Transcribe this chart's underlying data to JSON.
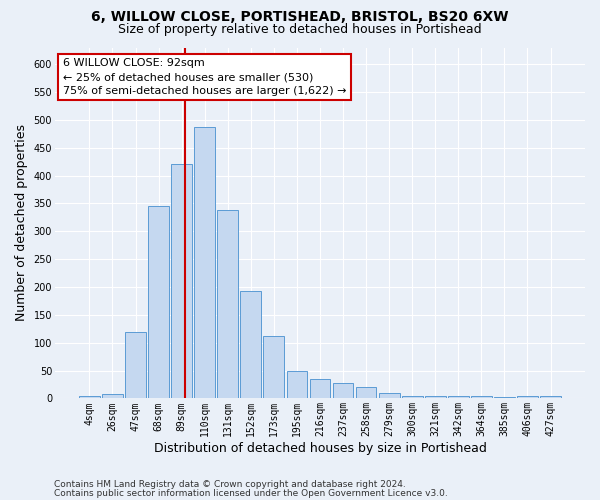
{
  "title_line1": "6, WILLOW CLOSE, PORTISHEAD, BRISTOL, BS20 6XW",
  "title_line2": "Size of property relative to detached houses in Portishead",
  "xlabel": "Distribution of detached houses by size in Portishead",
  "ylabel": "Number of detached properties",
  "bar_color": "#c5d8f0",
  "bar_edge_color": "#5b9bd5",
  "categories": [
    "4sqm",
    "26sqm",
    "47sqm",
    "68sqm",
    "89sqm",
    "110sqm",
    "131sqm",
    "152sqm",
    "173sqm",
    "195sqm",
    "216sqm",
    "237sqm",
    "258sqm",
    "279sqm",
    "300sqm",
    "321sqm",
    "342sqm",
    "364sqm",
    "385sqm",
    "406sqm",
    "427sqm"
  ],
  "values": [
    5,
    8,
    120,
    345,
    420,
    488,
    338,
    193,
    112,
    50,
    35,
    27,
    20,
    10,
    5,
    5,
    5,
    5,
    3,
    5,
    5
  ],
  "ylim": [
    0,
    630
  ],
  "yticks": [
    0,
    50,
    100,
    150,
    200,
    250,
    300,
    350,
    400,
    450,
    500,
    550,
    600
  ],
  "vline_color": "#cc0000",
  "annotation_text": "6 WILLOW CLOSE: 92sqm\n← 25% of detached houses are smaller (530)\n75% of semi-detached houses are larger (1,622) →",
  "annotation_box_color": "#ffffff",
  "annotation_box_edge_color": "#cc0000",
  "footer_line1": "Contains HM Land Registry data © Crown copyright and database right 2024.",
  "footer_line2": "Contains public sector information licensed under the Open Government Licence v3.0.",
  "background_color": "#eaf0f8",
  "plot_bg_color": "#eaf0f8",
  "title_fontsize": 10,
  "subtitle_fontsize": 9,
  "axis_label_fontsize": 9,
  "tick_fontsize": 7,
  "footer_fontsize": 6.5,
  "annotation_fontsize": 8
}
